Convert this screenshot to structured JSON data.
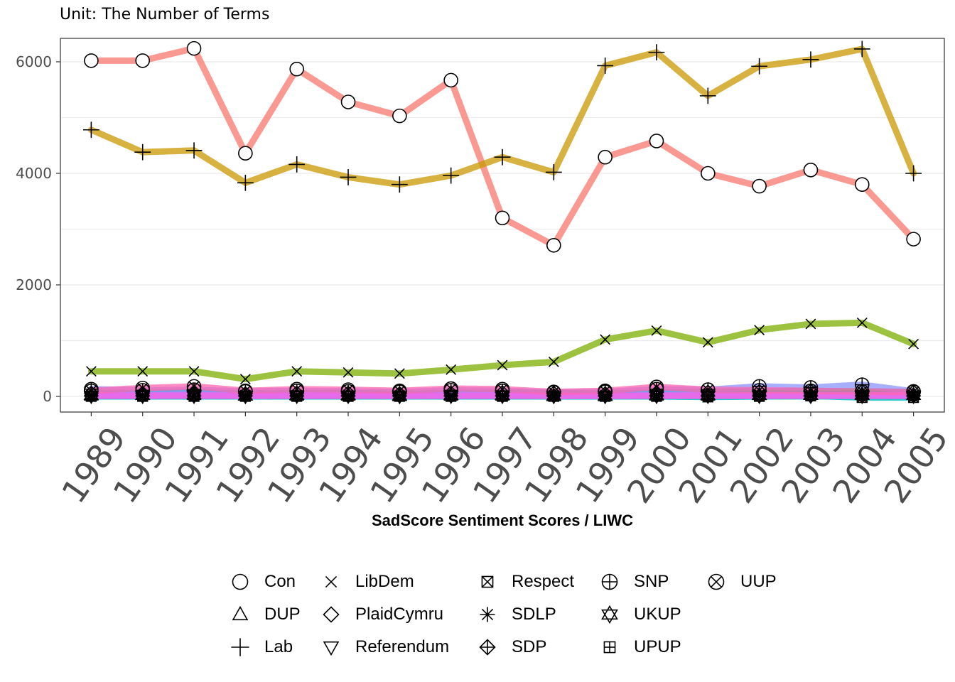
{
  "chart_data": {
    "type": "line",
    "subtitle": "Unit: The Number of Terms",
    "xlabel": "SadScore Sentiment Scores / LIWC",
    "ylabel": "",
    "x": [
      1989,
      1990,
      1991,
      1992,
      1993,
      1994,
      1995,
      1996,
      1997,
      1998,
      1999,
      2000,
      2001,
      2002,
      2003,
      2004,
      2005
    ],
    "x_tick_labels": [
      "1989",
      "1990",
      "1991",
      "1992",
      "1993",
      "1994",
      "1995",
      "1996",
      "1997",
      "1998",
      "1999",
      "2000",
      "2001",
      "2002",
      "2003",
      "2004",
      "2005"
    ],
    "y_ticks": [
      0,
      2000,
      4000,
      6000
    ],
    "y_tick_labels": [
      "0",
      "2000",
      "4000",
      "6000"
    ],
    "ylim": [
      -280,
      6420
    ],
    "grid": true,
    "legend_position": "bottom",
    "series": [
      {
        "name": "Con",
        "shape": "circle",
        "color": "#F8766D",
        "values": [
          6020,
          6020,
          6240,
          4360,
          5870,
          5280,
          5030,
          5670,
          3200,
          2710,
          4290,
          4580,
          4000,
          3770,
          4060,
          3800,
          2820
        ]
      },
      {
        "name": "DUP",
        "shape": "triangle",
        "color": "#E58700",
        "values": [
          20,
          30,
          30,
          20,
          20,
          20,
          10,
          20,
          20,
          10,
          10,
          20,
          20,
          30,
          40,
          50,
          40
        ]
      },
      {
        "name": "Lab",
        "shape": "plus",
        "color": "#C99800",
        "values": [
          4780,
          4380,
          4410,
          3830,
          4160,
          3930,
          3800,
          3960,
          4290,
          4020,
          5930,
          6170,
          5390,
          5920,
          6040,
          6230,
          4000
        ]
      },
      {
        "name": "LibDem",
        "shape": "x",
        "color": "#7CAE00",
        "values": [
          450,
          450,
          450,
          310,
          450,
          430,
          410,
          480,
          560,
          620,
          1020,
          1180,
          970,
          1190,
          1300,
          1320,
          940
        ]
      },
      {
        "name": "PlaidCymru",
        "shape": "diamond",
        "color": "#00BA38",
        "values": [
          60,
          60,
          80,
          50,
          60,
          60,
          50,
          60,
          70,
          60,
          50,
          70,
          80,
          90,
          100,
          90,
          80
        ]
      },
      {
        "name": "Referendum",
        "shape": "triangle-down",
        "color": "#00C08B",
        "values": [
          0,
          0,
          0,
          0,
          0,
          0,
          0,
          0,
          0,
          0,
          0,
          0,
          0,
          0,
          0,
          0,
          0
        ]
      },
      {
        "name": "Respect",
        "shape": "square-x",
        "color": "#00BFC4",
        "values": [
          0,
          0,
          0,
          0,
          0,
          0,
          0,
          0,
          0,
          0,
          0,
          0,
          -10,
          0,
          10,
          -20,
          -20
        ]
      },
      {
        "name": "SDLP",
        "shape": "asterisk",
        "color": "#00B4F0",
        "values": [
          30,
          30,
          40,
          30,
          30,
          30,
          20,
          30,
          30,
          20,
          20,
          30,
          30,
          40,
          40,
          40,
          30
        ]
      },
      {
        "name": "SDP",
        "shape": "diamond-plus",
        "color": "#619CFF",
        "values": [
          10,
          10,
          10,
          10,
          10,
          10,
          10,
          10,
          10,
          10,
          10,
          10,
          10,
          10,
          10,
          10,
          10
        ]
      },
      {
        "name": "SNP",
        "shape": "circle-plus",
        "color": "#8C94FF",
        "values": [
          130,
          110,
          120,
          90,
          100,
          90,
          80,
          110,
          100,
          70,
          80,
          130,
          120,
          180,
          160,
          210,
          90
        ]
      },
      {
        "name": "UKUP",
        "shape": "star-of-david",
        "color": "#DB72FB",
        "values": [
          20,
          20,
          30,
          10,
          20,
          20,
          10,
          20,
          20,
          10,
          10,
          20,
          20,
          20,
          20,
          20,
          20
        ]
      },
      {
        "name": "UPUP",
        "shape": "square-plus",
        "color": "#F564E3",
        "values": [
          10,
          10,
          10,
          10,
          10,
          10,
          10,
          10,
          10,
          10,
          10,
          10,
          10,
          10,
          10,
          10,
          10
        ]
      },
      {
        "name": "UUP",
        "shape": "circle-x",
        "color": "#FF64B0",
        "values": [
          100,
          150,
          180,
          100,
          130,
          120,
          100,
          140,
          130,
          80,
          100,
          170,
          120,
          110,
          100,
          90,
          80
        ]
      }
    ]
  }
}
